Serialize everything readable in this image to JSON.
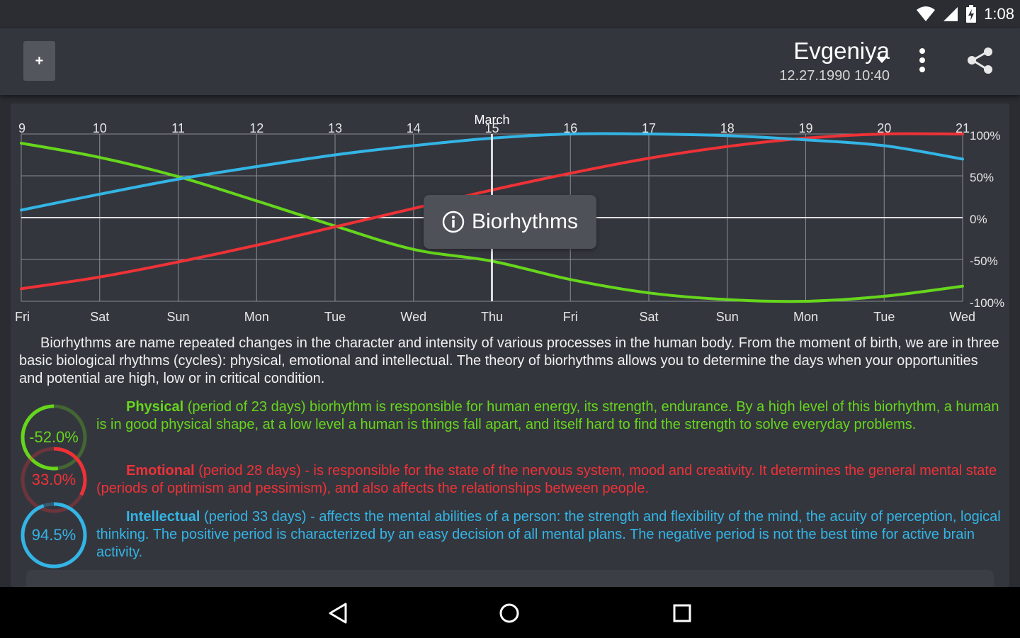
{
  "status_bar": {
    "time": "1:08",
    "icons": [
      "wifi-icon",
      "signal-icon",
      "battery-charging-icon"
    ]
  },
  "app_bar": {
    "add_label": "+",
    "profile_name": "Evgeniya",
    "profile_birth": "12.27.1990 10:40",
    "icons": [
      "dropdown-icon",
      "more-vert-icon",
      "share-icon"
    ]
  },
  "chart_data": {
    "type": "line",
    "month_label": "March",
    "x": [
      9,
      10,
      11,
      12,
      13,
      14,
      15,
      16,
      17,
      18,
      19,
      20,
      21
    ],
    "x_labels": [
      "9",
      "10",
      "11",
      "12",
      "13",
      "14",
      "15",
      "16",
      "17",
      "18",
      "19",
      "20",
      "21"
    ],
    "weekdays": [
      "Fri",
      "Sat",
      "Sun",
      "Mon",
      "Tue",
      "Wed",
      "Thu",
      "Fri",
      "Sat",
      "Sun",
      "Mon",
      "Tue",
      "Wed"
    ],
    "y_ticks": [
      100,
      50,
      0,
      -50,
      -100
    ],
    "y_tick_labels": [
      "100%",
      "50%",
      "0%",
      "-50%",
      "-100%"
    ],
    "ylim": [
      -100,
      100
    ],
    "current_x": 15,
    "grid": true,
    "series": [
      {
        "values": [
          89,
          72,
          49,
          20,
          -10,
          -38,
          -52,
          -74,
          -90,
          -98,
          -100,
          -94,
          -82
        ],
        "color": "#66d61c"
      },
      {
        "values": [
          -85,
          -71,
          -53,
          -33,
          -11,
          11,
          33,
          53,
          71,
          85,
          95,
          100,
          100
        ],
        "color": "#ee3236"
      },
      {
        "values": [
          9,
          28,
          46,
          61,
          75,
          86,
          95,
          100,
          100,
          98,
          93,
          86,
          70
        ],
        "color": "#33b5e5"
      }
    ]
  },
  "tooltip": {
    "label": "Biorhythms"
  },
  "description": {
    "intro": "Biorhythms are name repeated changes in the character and intensity of various processes in the human body. From the moment of birth, we are in three basic biological rhythms (cycles): physical, emotional and intellectual. The theory of biorhythms allows you to determine the days when your opportunities and potential are high, low or in critical condition.",
    "physical": {
      "value": "-52.0%",
      "fraction": -0.52,
      "color": "#66d61c",
      "title": "Physical",
      "text": " (period of 23 days) biorhythm is responsible for human energy, its strength, endurance. By a high level of this biorhythm, a human is in good physical shape, at a low level a human is things fall apart, and itself hard to find the strength to solve everyday problems."
    },
    "emotional": {
      "value": "33.0%",
      "fraction": 0.33,
      "color": "#ee3236",
      "title": "Emotional",
      "text": " (period 28 days) - is responsible for the state of the nervous system, mood and creativity. It determines the general mental state (periods of optimism and pessimism), and also affects the relationships between people."
    },
    "intellectual": {
      "value": "94.5%",
      "fraction": 0.945,
      "color": "#33b5e5",
      "title": "Intellectual",
      "text": " (period 33 days) - affects the mental abilities of a person: the strength and flexibility of the mind, the acuity of perception, logical thinking. The positive period is characterized by an easy decision of all mental plans. The negative period is not the best time for active brain activity."
    }
  },
  "nav_bar": {
    "icons": [
      "back-icon",
      "home-icon",
      "recents-icon"
    ]
  }
}
